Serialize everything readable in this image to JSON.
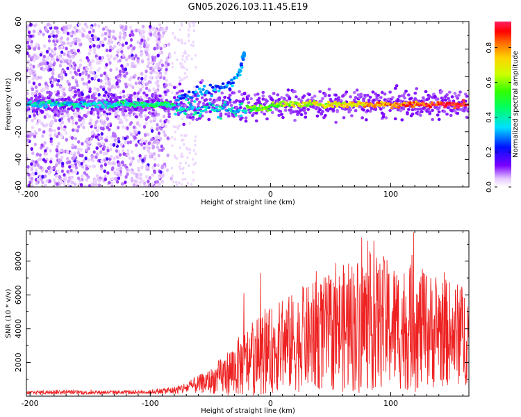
{
  "title": "GN05.2026.103.11.45.E19",
  "chart_data": [
    {
      "type": "heatmap",
      "xlabel": "Height of straight line (km)",
      "ylabel": "Frequency (Hz)",
      "xlim": [
        -203,
        165
      ],
      "ylim": [
        -60,
        60
      ],
      "xticks": [
        -200,
        -100,
        0,
        100
      ],
      "yticks": [
        -60,
        -40,
        -20,
        0,
        20,
        40,
        60
      ],
      "colorbar": {
        "label": "Normalized spectral amplitude",
        "range": [
          0,
          0.95
        ],
        "ticks": [
          "0.0",
          "0.2",
          "0.4",
          "0.6",
          "0.8"
        ],
        "tick_values": [
          0.0,
          0.2,
          0.4,
          0.6,
          0.8
        ]
      },
      "features": {
        "main_band_frequency_hz": 0,
        "main_band_amplitude_start": 0.35,
        "main_band_amplitude_end": 0.95,
        "noise_region_x": [
          -203,
          -82
        ],
        "hook_points": [
          [
            -78,
            5
          ],
          [
            -62,
            8
          ],
          [
            -48,
            10
          ],
          [
            -36,
            14
          ],
          [
            -26,
            22
          ],
          [
            -22,
            36
          ]
        ]
      }
    },
    {
      "type": "line",
      "xlabel": "Height of straight line (km)",
      "ylabel": "SNR (10 * v/v)",
      "xlim": [
        -203,
        165
      ],
      "ylim": [
        0,
        9800
      ],
      "xticks": [
        -200,
        -100,
        0,
        100
      ],
      "yticks": [
        2000,
        4000,
        6000,
        8000
      ],
      "color": "#ee2222",
      "envelope": {
        "x": [
          -203,
          -180,
          -150,
          -120,
          -100,
          -80,
          -70,
          -60,
          -50,
          -40,
          -30,
          -20,
          -10,
          0,
          10,
          20,
          30,
          40,
          50,
          60,
          70,
          80,
          90,
          100,
          110,
          120,
          130,
          140,
          150,
          165
        ],
        "mean": [
          200,
          250,
          220,
          230,
          250,
          350,
          500,
          700,
          900,
          1200,
          1600,
          2000,
          2400,
          2700,
          3000,
          3200,
          3400,
          3600,
          3800,
          4000,
          4200,
          4400,
          4300,
          4200,
          4100,
          4000,
          3900,
          3800,
          3700,
          3600
        ],
        "spread": [
          120,
          150,
          130,
          130,
          140,
          250,
          400,
          600,
          800,
          1300,
          1800,
          2300,
          2600,
          2800,
          3100,
          3300,
          3500,
          3700,
          3900,
          4200,
          4500,
          4600,
          4400,
          4300,
          4200,
          4200,
          3900,
          3700,
          3500,
          3300
        ]
      },
      "peaks": [
        [
          -22,
          6100
        ],
        [
          -8,
          7300
        ],
        [
          27,
          6500
        ],
        [
          38,
          7400
        ],
        [
          65,
          7850
        ],
        [
          76,
          9400
        ],
        [
          86,
          9200
        ],
        [
          94,
          8300
        ],
        [
          119,
          9700
        ],
        [
          140,
          6000
        ]
      ]
    }
  ]
}
